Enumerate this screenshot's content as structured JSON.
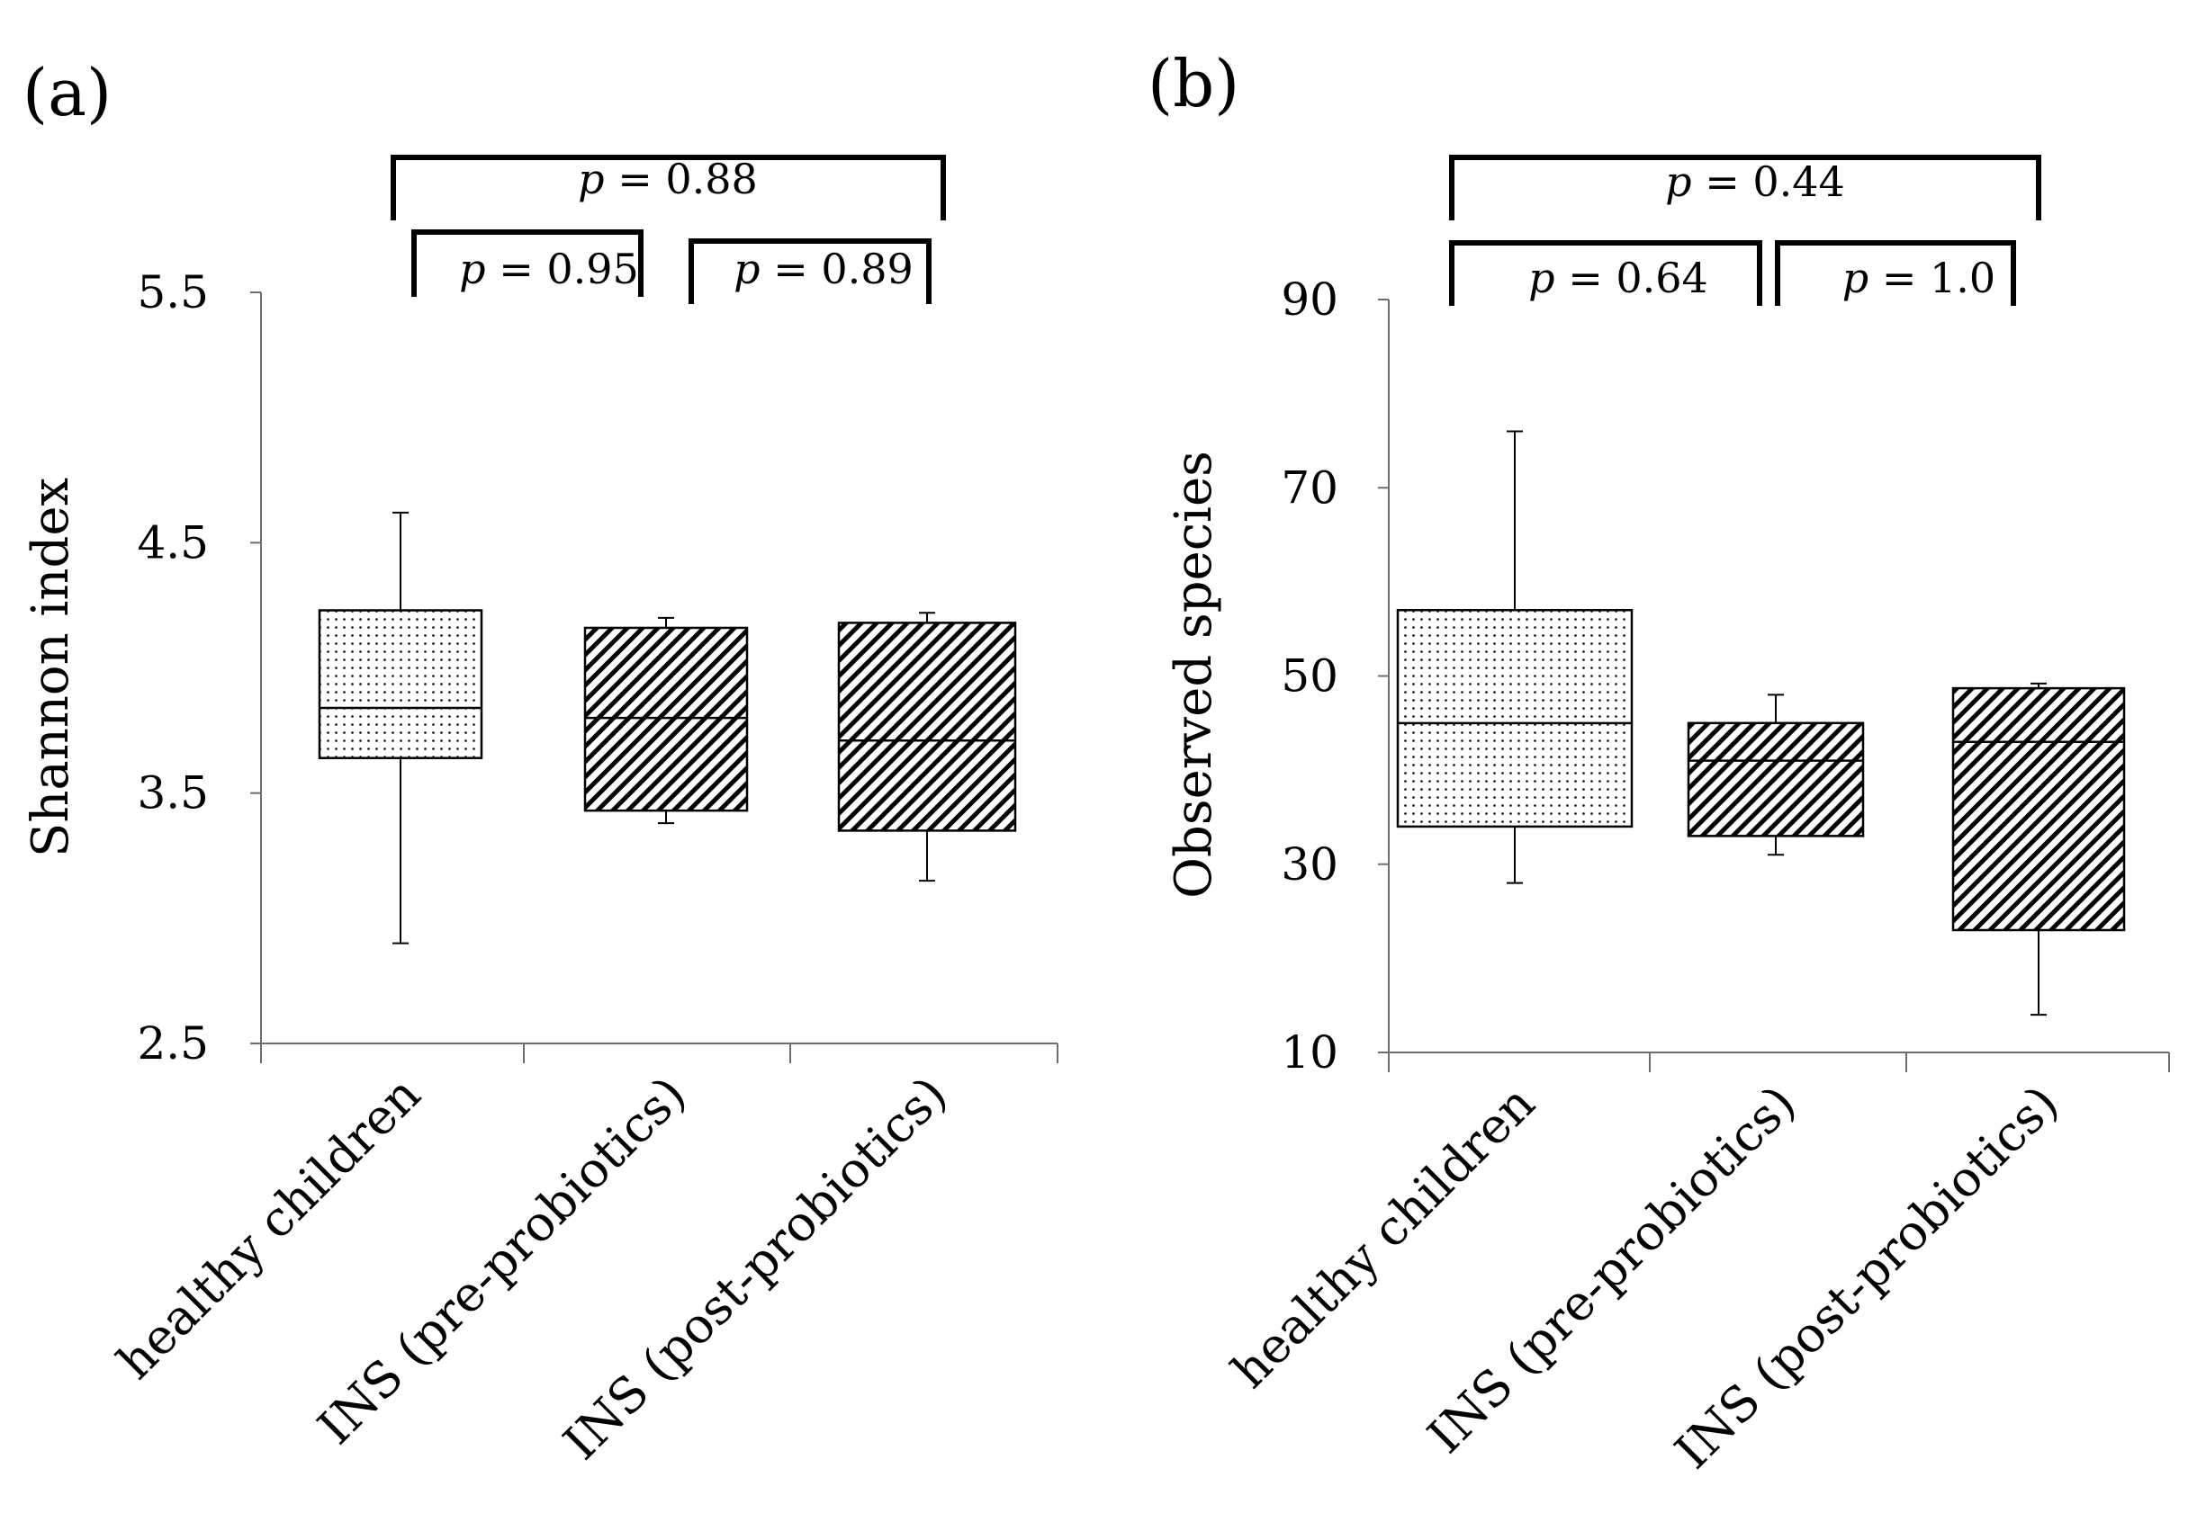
{
  "chart_data": [
    {
      "panel": "(a)",
      "type": "box",
      "ylabel": "Shannon index",
      "ylim": [
        2.5,
        5.5
      ],
      "yticks": [
        "2.5",
        "3.5",
        "4.5",
        "5.5"
      ],
      "categories": [
        "healthy children",
        "INS (pre-probiotics)",
        "INS (post-probiotics)"
      ],
      "boxes": [
        {
          "name": "healthy children",
          "whisker_low": 2.9,
          "q1": 3.64,
          "median": 3.84,
          "q3": 4.23,
          "whisker_high": 4.62,
          "pattern": "dots"
        },
        {
          "name": "INS (pre-probiotics)",
          "whisker_low": 3.38,
          "q1": 3.43,
          "median": 3.8,
          "q3": 4.16,
          "whisker_high": 4.2,
          "pattern": "hatch"
        },
        {
          "name": "INS (post-probiotics)",
          "whisker_low": 3.15,
          "q1": 3.35,
          "median": 3.71,
          "q3": 4.18,
          "whisker_high": 4.22,
          "pattern": "hatch"
        }
      ],
      "comparisons": [
        {
          "from": 0,
          "to": 2,
          "level": "top",
          "p_symbol": "p",
          "p_text": " = 0.88"
        },
        {
          "from": 0,
          "to": 1,
          "level": "low",
          "p_symbol": "p",
          "p_text": " = 0.95"
        },
        {
          "from": 1,
          "to": 2,
          "level": "low",
          "p_symbol": "p",
          "p_text": " = 0.89"
        }
      ]
    },
    {
      "panel": "(b)",
      "type": "box",
      "ylabel": "Observed species",
      "ylim": [
        10,
        90
      ],
      "yticks": [
        "10",
        "30",
        "50",
        "70",
        "90"
      ],
      "categories": [
        "healthy children",
        "INS (pre-probiotics)",
        "INS (post-probiotics)"
      ],
      "boxes": [
        {
          "name": "healthy children",
          "whisker_low": 28,
          "q1": 34,
          "median": 45,
          "q3": 57,
          "whisker_high": 76,
          "pattern": "dots"
        },
        {
          "name": "INS (pre-probiotics)",
          "whisker_low": 31,
          "q1": 33,
          "median": 41,
          "q3": 45,
          "whisker_high": 48,
          "pattern": "hatch"
        },
        {
          "name": "INS (post-probiotics)",
          "whisker_low": 14,
          "q1": 23,
          "median": 43,
          "q3": 48.7,
          "whisker_high": 49.2,
          "pattern": "hatch"
        }
      ],
      "comparisons": [
        {
          "from": 0,
          "to": 2,
          "level": "top",
          "p_symbol": "p",
          "p_text": " = 0.44"
        },
        {
          "from": 0,
          "to": 1,
          "level": "low",
          "p_symbol": "p",
          "p_text": " = 0.64"
        },
        {
          "from": 1,
          "to": 2,
          "level": "low",
          "p_symbol": "p",
          "p_text": " = 1.0"
        }
      ]
    }
  ]
}
